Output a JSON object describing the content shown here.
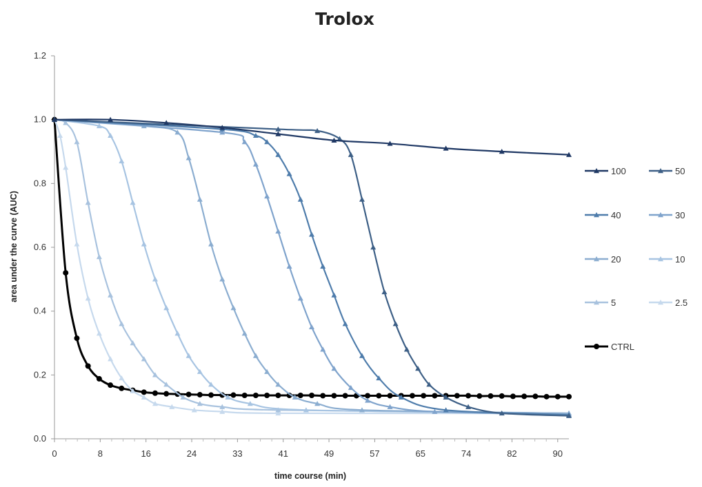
{
  "chart_data": {
    "type": "line",
    "title": "Trolox",
    "xlabel": "time course (min)",
    "ylabel": "area under the curve (AUC)",
    "xlim": [
      0,
      92
    ],
    "ylim": [
      0,
      1.2
    ],
    "x_ticks": [
      "0",
      "8",
      "16",
      "24",
      "33",
      "41",
      "49",
      "57",
      "65",
      "74",
      "82",
      "90"
    ],
    "y_ticks": [
      "0.0",
      "0.2",
      "0.4",
      "0.6",
      "0.8",
      "1.0",
      "1.2"
    ],
    "grid": false,
    "legend_position": "right",
    "series": [
      {
        "name": "100",
        "color": "#1f3864",
        "marker": "triangle",
        "x": [
          0,
          10,
          20,
          30,
          40,
          50,
          60,
          70,
          80,
          92
        ],
        "y": [
          1.0,
          1.0,
          0.99,
          0.975,
          0.955,
          0.935,
          0.925,
          0.91,
          0.9,
          0.89
        ]
      },
      {
        "name": "50",
        "color": "#3d5f86",
        "marker": "triangle",
        "x": [
          0,
          40,
          47,
          51,
          53,
          55,
          57,
          59,
          61,
          63,
          65,
          67,
          70,
          74,
          80,
          92
        ],
        "y": [
          1.0,
          0.97,
          0.965,
          0.94,
          0.89,
          0.75,
          0.6,
          0.46,
          0.36,
          0.28,
          0.22,
          0.17,
          0.13,
          0.1,
          0.08,
          0.072
        ]
      },
      {
        "name": "40",
        "color": "#4e7cab",
        "marker": "triangle",
        "x": [
          0,
          30,
          36,
          38,
          40,
          42,
          44,
          46,
          48,
          50,
          52,
          55,
          58,
          62,
          70,
          92
        ],
        "y": [
          1.0,
          0.97,
          0.95,
          0.93,
          0.89,
          0.83,
          0.75,
          0.64,
          0.54,
          0.45,
          0.36,
          0.26,
          0.19,
          0.13,
          0.09,
          0.075
        ]
      },
      {
        "name": "30",
        "color": "#7fa3cc",
        "marker": "triangle",
        "x": [
          0,
          30,
          34,
          36,
          38,
          40,
          42,
          44,
          46,
          48,
          50,
          53,
          56,
          60,
          68,
          92
        ],
        "y": [
          1.0,
          0.96,
          0.93,
          0.86,
          0.76,
          0.65,
          0.54,
          0.44,
          0.35,
          0.28,
          0.22,
          0.16,
          0.12,
          0.1,
          0.085,
          0.075
        ]
      },
      {
        "name": "20",
        "color": "#8badd0",
        "marker": "triangle",
        "x": [
          0,
          16,
          22,
          24,
          26,
          28,
          30,
          32,
          34,
          36,
          38,
          40,
          43,
          47,
          55,
          92
        ],
        "y": [
          1.0,
          0.98,
          0.96,
          0.88,
          0.75,
          0.61,
          0.5,
          0.41,
          0.33,
          0.26,
          0.21,
          0.17,
          0.13,
          0.11,
          0.09,
          0.08
        ]
      },
      {
        "name": "10",
        "color": "#a7c4e2",
        "marker": "triangle",
        "x": [
          0,
          8,
          10,
          12,
          14,
          16,
          18,
          20,
          22,
          24,
          26,
          28,
          31,
          35,
          45,
          92
        ],
        "y": [
          1.0,
          0.98,
          0.95,
          0.87,
          0.74,
          0.61,
          0.5,
          0.41,
          0.33,
          0.26,
          0.21,
          0.17,
          0.13,
          0.11,
          0.09,
          0.08
        ]
      },
      {
        "name": "5",
        "color": "#a8c2de",
        "marker": "triangle",
        "x": [
          0,
          2,
          4,
          6,
          8,
          10,
          12,
          14,
          16,
          18,
          20,
          23,
          26,
          30,
          40,
          92
        ],
        "y": [
          1.0,
          0.99,
          0.93,
          0.74,
          0.57,
          0.45,
          0.36,
          0.3,
          0.25,
          0.2,
          0.17,
          0.13,
          0.11,
          0.1,
          0.09,
          0.08
        ]
      },
      {
        "name": "2.5",
        "color": "#c6d9ed",
        "marker": "triangle",
        "x": [
          0,
          1,
          2,
          4,
          6,
          8,
          10,
          12,
          14,
          16,
          18,
          21,
          25,
          30,
          40,
          92
        ],
        "y": [
          1.0,
          0.95,
          0.85,
          0.61,
          0.44,
          0.33,
          0.25,
          0.19,
          0.15,
          0.13,
          0.11,
          0.1,
          0.09,
          0.085,
          0.08,
          0.08
        ]
      },
      {
        "name": "CTRL",
        "color": "#000000",
        "marker": "circle",
        "x": [
          0,
          2,
          4,
          6,
          8,
          10,
          12,
          14,
          16,
          18,
          20,
          22,
          24,
          26,
          28,
          30,
          32,
          34,
          36,
          38,
          40,
          42,
          44,
          46,
          48,
          50,
          52,
          54,
          56,
          58,
          60,
          62,
          64,
          66,
          68,
          70,
          72,
          74,
          76,
          78,
          80,
          82,
          84,
          86,
          88,
          90,
          92
        ],
        "y": [
          1.0,
          0.52,
          0.315,
          0.228,
          0.188,
          0.168,
          0.158,
          0.152,
          0.146,
          0.143,
          0.141,
          0.14,
          0.139,
          0.138,
          0.137,
          0.137,
          0.137,
          0.136,
          0.136,
          0.136,
          0.136,
          0.136,
          0.136,
          0.136,
          0.135,
          0.135,
          0.135,
          0.135,
          0.135,
          0.135,
          0.135,
          0.135,
          0.135,
          0.135,
          0.135,
          0.135,
          0.135,
          0.135,
          0.134,
          0.134,
          0.134,
          0.133,
          0.133,
          0.133,
          0.132,
          0.132,
          0.132
        ]
      }
    ]
  }
}
